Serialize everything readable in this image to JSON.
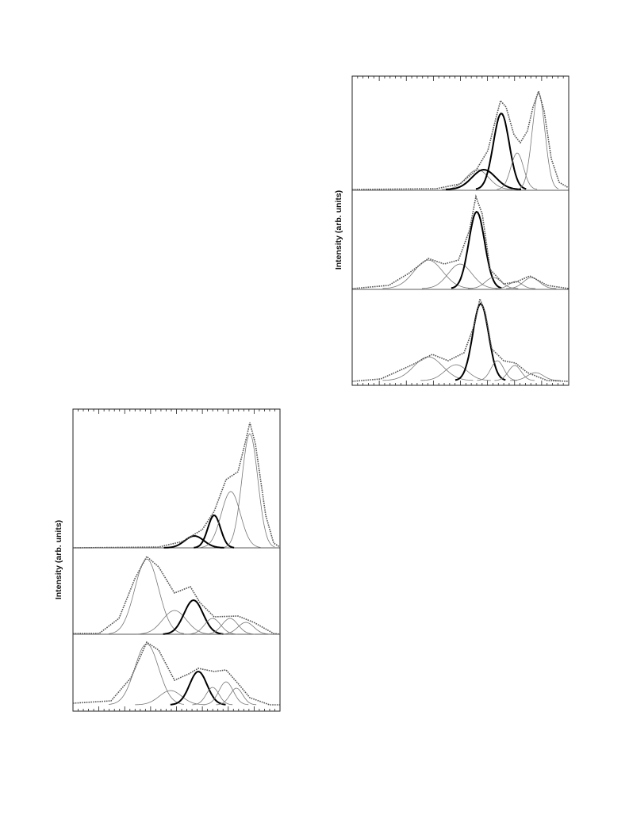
{
  "figures": [
    {
      "y_label": "Intensity (arb. units)"
    },
    {
      "y_label": "Intensity (arb. units)"
    }
  ]
}
